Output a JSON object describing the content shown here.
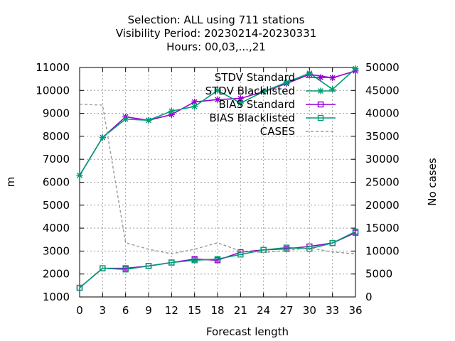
{
  "chart_data": {
    "type": "line",
    "title_lines": [
      "Selection: ALL using   711 stations",
      "Visibility   Period: 20230214-20230331",
      "Hours:  00,03,...,21"
    ],
    "xlabel": "Forecast length",
    "ylabel": "m",
    "y2label": "No cases",
    "x": [
      0,
      3,
      6,
      9,
      12,
      15,
      18,
      21,
      24,
      27,
      30,
      33,
      36
    ],
    "xlim": [
      0,
      36
    ],
    "ylim": [
      1000,
      11000
    ],
    "y2lim": [
      0,
      50000
    ],
    "yticks": [
      1000,
      2000,
      3000,
      4000,
      5000,
      6000,
      7000,
      8000,
      9000,
      10000,
      11000
    ],
    "y2ticks": [
      0,
      5000,
      10000,
      15000,
      20000,
      25000,
      30000,
      35000,
      40000,
      45000,
      50000
    ],
    "grid": true,
    "legend_position": "top-right",
    "series": [
      {
        "name": "STDV Standard",
        "axis": "y",
        "color": "#9400d3",
        "marker": "star",
        "values": [
          6300,
          7950,
          8850,
          8700,
          8950,
          9500,
          9600,
          9650,
          9950,
          10300,
          10700,
          10550,
          10850
        ]
      },
      {
        "name": "STDV Blacklisted",
        "axis": "y",
        "color": "#009e73",
        "marker": "star",
        "values": [
          6300,
          7950,
          8750,
          8700,
          9100,
          9300,
          10000,
          9450,
          9950,
          10350,
          10750,
          10050,
          10950
        ]
      },
      {
        "name": "BIAS Standard",
        "axis": "y",
        "color": "#9400d3",
        "marker": "square",
        "values": [
          1400,
          2250,
          2250,
          2350,
          2500,
          2650,
          2600,
          2950,
          3050,
          3100,
          3200,
          3350,
          3800
        ]
      },
      {
        "name": "BIAS Blacklisted",
        "axis": "y",
        "color": "#009e73",
        "marker": "square",
        "values": [
          1400,
          2250,
          2200,
          2350,
          2500,
          2600,
          2650,
          2850,
          3050,
          3150,
          3100,
          3350,
          3850
        ]
      },
      {
        "name": "CASES",
        "axis": "y2",
        "color": "#999999",
        "marker": "none",
        "dashed": true,
        "values": [
          42000,
          41800,
          11800,
          10400,
          9400,
          10400,
          11800,
          10000,
          9700,
          10100,
          10700,
          9800,
          9400
        ]
      }
    ]
  }
}
